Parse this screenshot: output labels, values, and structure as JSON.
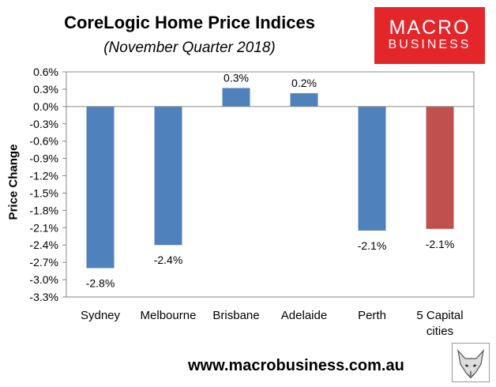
{
  "header": {
    "title": "CoreLogic Home Price Indices",
    "subtitle": "(November Quarter 2018)"
  },
  "brand": {
    "logo_line1": "MACRO",
    "logo_line2": "BUSINESS",
    "logo_color": "#e3262a",
    "website": "www.macrobusiness.com.au",
    "fox_icon": "fox-sketch-icon"
  },
  "chart_data": {
    "type": "bar",
    "title": "CoreLogic Home Price Indices",
    "subtitle": "(November Quarter 2018)",
    "xlabel": "",
    "ylabel": "Price Change",
    "categories": [
      "Sydney",
      "Melbourne",
      "Brisbane",
      "Adelaide",
      "Perth",
      "5 Capital cities"
    ],
    "category_lines": [
      [
        "Sydney"
      ],
      [
        "Melbourne"
      ],
      [
        "Brisbane"
      ],
      [
        "Adelaide"
      ],
      [
        "Perth"
      ],
      [
        "5 Capital",
        "cities"
      ]
    ],
    "values": [
      -2.8,
      -2.4,
      0.32,
      0.23,
      -2.15,
      -2.12
    ],
    "data_labels": [
      "-2.8%",
      "-2.4%",
      "0.3%",
      "0.2%",
      "-2.1%",
      "-2.1%"
    ],
    "bar_colors": [
      "#4f81bd",
      "#4f81bd",
      "#4f81bd",
      "#4f81bd",
      "#4f81bd",
      "#c0504d"
    ],
    "ylim": [
      -3.3,
      0.6
    ],
    "yticks": [
      0.6,
      0.3,
      0.0,
      -0.3,
      -0.6,
      -0.9,
      -1.2,
      -1.5,
      -1.8,
      -2.1,
      -2.4,
      -2.7,
      -3.0,
      -3.3
    ],
    "ytick_labels": [
      "0.6%",
      "0.3%",
      "0.0%",
      "-0.3%",
      "-0.6%",
      "-0.9%",
      "-1.2%",
      "-1.5%",
      "-1.8%",
      "-2.1%",
      "-2.4%",
      "-2.7%",
      "-3.0%",
      "-3.3%"
    ],
    "grid": false,
    "legend": "none"
  }
}
